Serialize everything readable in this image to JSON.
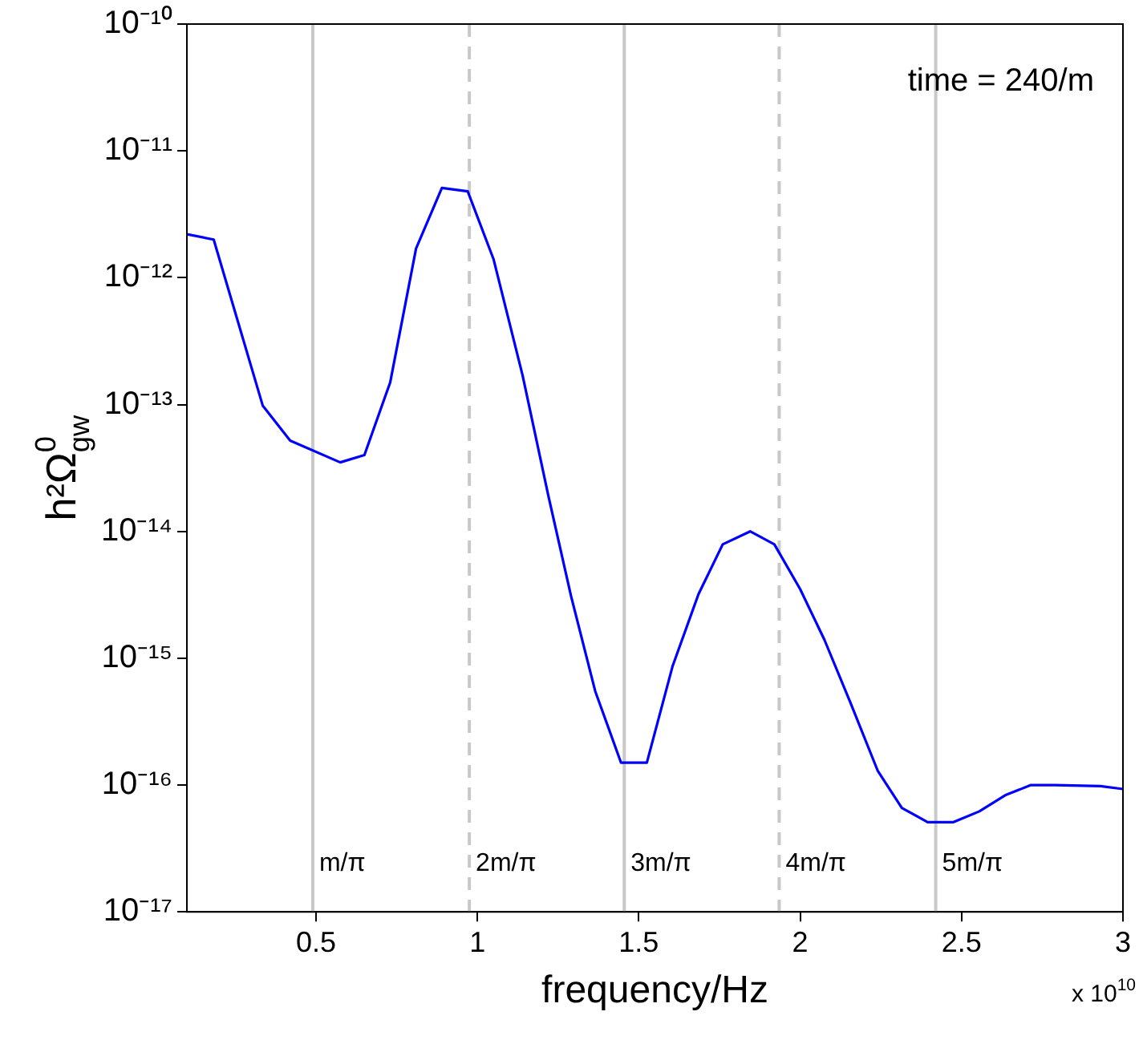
{
  "chart_data": {
    "type": "line",
    "xlabel": "frequency/Hz",
    "ylabel": "h²Ω$^{0}$$_{gw}$",
    "annotations": [
      "time = 240/m",
      "x 10$^{10}$"
    ],
    "x": [
      0.1,
      0.183,
      0.335,
      0.42,
      0.575,
      0.65,
      0.73,
      0.81,
      0.89,
      0.97,
      1.05,
      1.14,
      1.22,
      1.29,
      1.365,
      1.445,
      1.525,
      1.605,
      1.685,
      1.76,
      1.845,
      1.92,
      2.0,
      2.075,
      2.155,
      2.24,
      2.315,
      2.395,
      2.475,
      2.555,
      2.635,
      2.715,
      2.79,
      2.93,
      3.0
    ],
    "series": [
      {
        "color": "#0000ff",
        "values": [
          2.2e-12,
          2e-12,
          9.8e-14,
          5.2e-14,
          3.5e-14,
          4e-14,
          1.5e-13,
          1.7e-12,
          5.1e-12,
          4.8e-12,
          1.4e-12,
          1.7e-13,
          1.9e-14,
          3.1e-15,
          5.5e-16,
          1.5e-16,
          1.5e-16,
          8.7e-16,
          3.2e-15,
          7.9e-15,
          1e-14,
          7.9e-15,
          3.5e-15,
          1.4e-15,
          4.5e-16,
          1.3e-16,
          6.6e-17,
          5.1e-17,
          5.1e-17,
          6.2e-17,
          8.3e-17,
          1e-16,
          1e-16,
          9.8e-17,
          9.3e-17
        ]
      }
    ],
    "xlim": [
      0.1,
      3
    ],
    "xticks": [
      0.5,
      1,
      1.5,
      2,
      2.5,
      3
    ],
    "ylim": [
      1e-17,
      1e-10
    ],
    "yticks": [
      {
        "value": 1e-17,
        "label": "10⁻¹⁷"
      },
      {
        "value": 1e-16,
        "label": "10⁻¹⁶"
      },
      {
        "value": 1e-15,
        "label": "10⁻¹⁵"
      },
      {
        "value": 1e-14,
        "label": "10⁻¹⁴"
      },
      {
        "value": 1e-13,
        "label": "10⁻¹³"
      },
      {
        "value": 1e-12,
        "label": "10⁻¹²"
      },
      {
        "value": 1e-11,
        "label": "10⁻¹¹"
      },
      {
        "value": 1e-10,
        "label": "10⁻¹⁰"
      }
    ],
    "log": "y",
    "grid": false,
    "legend": false,
    "marker": "none",
    "line_style": "solid",
    "ref_lines": [
      {
        "axis": "x",
        "value": 0.49,
        "label": "m/π",
        "color": "#c8c8c8",
        "line_style": "solid"
      },
      {
        "axis": "x",
        "value": 0.975,
        "label": "2m/π",
        "color": "#c8c8c8",
        "line_style": "dashed"
      },
      {
        "axis": "x",
        "value": 1.455,
        "label": "3m/π",
        "color": "#c8c8c8",
        "line_style": "solid"
      },
      {
        "axis": "x",
        "value": 1.935,
        "label": "4m/π",
        "color": "#c8c8c8",
        "line_style": "dashed"
      },
      {
        "axis": "x",
        "value": 2.42,
        "label": "5m/π",
        "color": "#c8c8c8",
        "line_style": "solid"
      }
    ]
  }
}
